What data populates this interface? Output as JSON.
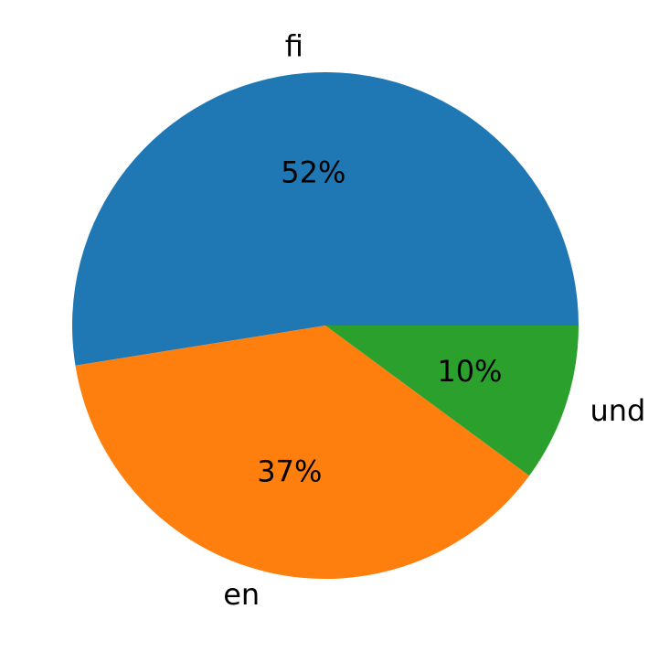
{
  "chart_data": {
    "type": "pie",
    "categories": [
      "fi",
      "en",
      "und"
    ],
    "values": [
      52,
      37,
      10
    ],
    "value_labels": [
      "52%",
      "37%",
      "10%"
    ],
    "colors": [
      "#1f77b4",
      "#ff7f0e",
      "#2ca02c"
    ]
  }
}
